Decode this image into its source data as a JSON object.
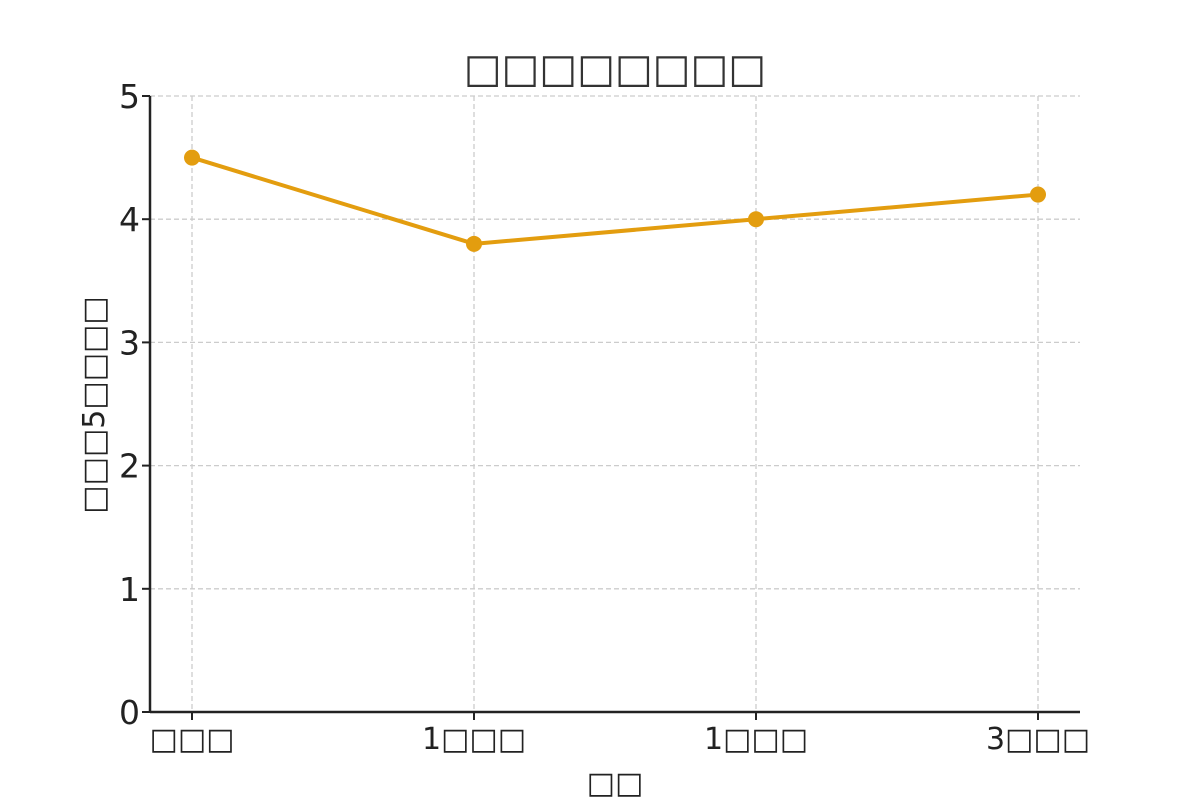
{
  "chart_data": {
    "type": "line",
    "title": "□□□□□□□□",
    "xlabel": "□□",
    "ylabel": "□□□5□□□□",
    "categories": [
      "□□□",
      "1□□□",
      "1□□□",
      "3□□□"
    ],
    "series": [
      {
        "values": [
          4.5,
          3.8,
          4.0,
          4.2
        ],
        "color": "#e39d0f",
        "marker": "circle"
      }
    ],
    "ylim": [
      0,
      5
    ],
    "yticks": [
      0,
      1,
      2,
      3,
      4,
      5
    ],
    "grid": true,
    "grid_style": "dashed"
  }
}
